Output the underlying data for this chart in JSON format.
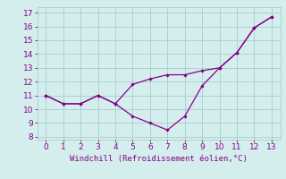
{
  "line1_x": [
    0,
    1,
    2,
    3,
    4,
    5,
    6,
    7,
    8,
    9,
    10,
    11,
    12,
    13
  ],
  "line1_y": [
    11.0,
    10.4,
    10.4,
    11.0,
    10.4,
    11.8,
    12.2,
    12.5,
    12.5,
    12.8,
    13.0,
    14.1,
    15.9,
    16.7
  ],
  "line2_x": [
    0,
    1,
    2,
    3,
    4,
    5,
    6,
    7,
    8,
    9,
    10,
    11,
    12,
    13
  ],
  "line2_y": [
    11.0,
    10.4,
    10.4,
    11.0,
    10.4,
    9.5,
    9.0,
    8.5,
    9.5,
    11.7,
    13.0,
    14.1,
    15.9,
    16.7
  ],
  "line_color": "#880088",
  "bg_color": "#d4eeee",
  "grid_color": "#aacccc",
  "xlabel": "Windchill (Refroidissement éolien,°C)",
  "xlabel_color": "#880088",
  "tick_color": "#880088",
  "xlim": [
    -0.5,
    13.5
  ],
  "ylim": [
    7.8,
    17.4
  ],
  "yticks": [
    8,
    9,
    10,
    11,
    12,
    13,
    14,
    15,
    16,
    17
  ],
  "xticks": [
    0,
    1,
    2,
    3,
    4,
    5,
    6,
    7,
    8,
    9,
    10,
    11,
    12,
    13
  ]
}
